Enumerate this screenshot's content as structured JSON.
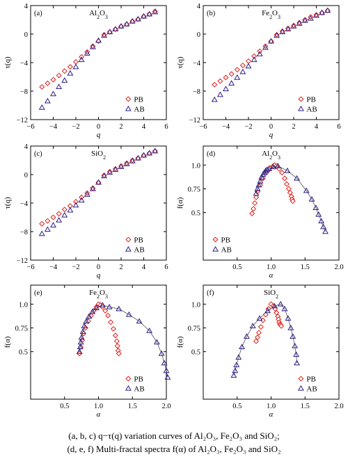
{
  "figure": {
    "caption_line1": "(a, b, c) q−τ(q) variation curves of Al₂O₃, Fe₂O₃ and SiO₂;",
    "caption_line2": "(d, e, f) Multi-fractal spectra f(α) of Al₂O₃, Fe₂O₃ and SiO₂"
  },
  "colors": {
    "PB": "#e0201b",
    "AB": "#2a1f86",
    "line": "#555555",
    "axis": "#000000"
  },
  "chart_data": [
    {
      "type": "scatter",
      "panel": "(a)",
      "title": "Al2O3",
      "xlabel": "q",
      "ylabel": "τ(q)",
      "xlim": [
        -6,
        6
      ],
      "ylim": [
        -12,
        4
      ],
      "xticks": [
        -6,
        -4,
        -2,
        0,
        2,
        4,
        6
      ],
      "yticks": [
        -12,
        -8,
        -4,
        0,
        4
      ],
      "legend_position": "bottom-right",
      "series": [
        {
          "name": "PB",
          "marker": "diamond",
          "x": [
            -5,
            -4.5,
            -4,
            -3.5,
            -3,
            -2.5,
            -2,
            -1.5,
            -1,
            -0.5,
            0,
            0.5,
            1,
            1.5,
            2,
            2.5,
            3,
            3.5,
            4,
            4.5,
            5
          ],
          "y": [
            -7.4,
            -6.9,
            -6.4,
            -5.8,
            -5.2,
            -4.6,
            -3.9,
            -3.2,
            -2.5,
            -1.7,
            -1.0,
            -0.1,
            0.3,
            0.7,
            1.1,
            1.4,
            1.8,
            2.1,
            2.5,
            2.8,
            3.2
          ],
          "connected": false
        },
        {
          "name": "AB",
          "marker": "triangle",
          "x": [
            -5,
            -4.5,
            -4,
            -3.5,
            -3,
            -2.5,
            -2,
            -1.5,
            -1,
            -0.5,
            0,
            0.5,
            1,
            1.5,
            2,
            2.5,
            3,
            3.5,
            4,
            4.5,
            5
          ],
          "y": [
            -10.3,
            -9.4,
            -8.4,
            -7.4,
            -6.5,
            -5.5,
            -4.6,
            -3.6,
            -2.7,
            -1.8,
            -0.9,
            -0.2,
            0.3,
            0.7,
            1.1,
            1.4,
            1.8,
            2.1,
            2.5,
            2.8,
            3.1
          ],
          "connected": false
        }
      ]
    },
    {
      "type": "scatter",
      "panel": "(b)",
      "title": "Fe2O3",
      "xlabel": "q",
      "ylabel": "τ(q)",
      "xlim": [
        -6,
        6
      ],
      "ylim": [
        -12,
        4
      ],
      "xticks": [
        -6,
        -4,
        -2,
        0,
        2,
        4,
        6
      ],
      "yticks": [
        -12,
        -8,
        -4,
        0,
        4
      ],
      "legend_position": "bottom-right",
      "series": [
        {
          "name": "PB",
          "marker": "diamond",
          "x": [
            -5,
            -4.5,
            -4,
            -3.5,
            -3,
            -2.5,
            -2,
            -1.5,
            -1,
            -0.5,
            0,
            0.5,
            1,
            1.5,
            2,
            2.5,
            3,
            3.5,
            4,
            4.5,
            5
          ],
          "y": [
            -7.1,
            -6.6,
            -6.1,
            -5.6,
            -5.0,
            -4.4,
            -3.8,
            -3.1,
            -2.4,
            -1.7,
            -1.0,
            -0.1,
            0.4,
            0.8,
            1.2,
            1.6,
            2.0,
            2.4,
            2.7,
            3.0,
            3.3
          ],
          "connected": false
        },
        {
          "name": "AB",
          "marker": "triangle",
          "x": [
            -5,
            -4.5,
            -4,
            -3.5,
            -3,
            -2.5,
            -2,
            -1.5,
            -1,
            -0.5,
            0,
            0.5,
            1,
            1.5,
            2,
            2.5,
            3,
            3.5,
            4,
            4.5,
            5
          ],
          "y": [
            -9.2,
            -8.5,
            -7.7,
            -6.9,
            -6.1,
            -5.3,
            -4.5,
            -3.6,
            -2.8,
            -1.9,
            -1.0,
            -0.2,
            0.3,
            0.7,
            1.1,
            1.5,
            1.9,
            2.2,
            2.6,
            3.0,
            3.3
          ],
          "connected": false
        }
      ]
    },
    {
      "type": "scatter",
      "panel": "(c)",
      "title": "SiO2",
      "xlabel": "q",
      "ylabel": "τ(q)",
      "xlim": [
        -6,
        6
      ],
      "ylim": [
        -12,
        4
      ],
      "xticks": [
        -6,
        -4,
        -2,
        0,
        2,
        4,
        6
      ],
      "yticks": [
        -12,
        -8,
        -4,
        0,
        4
      ],
      "legend_position": "bottom-right",
      "series": [
        {
          "name": "PB",
          "marker": "diamond",
          "x": [
            -5,
            -4.5,
            -4,
            -3.5,
            -3,
            -2.5,
            -2,
            -1.5,
            -1,
            -0.5,
            0,
            0.5,
            1,
            1.5,
            2,
            2.5,
            3,
            3.5,
            4,
            4.5,
            5
          ],
          "y": [
            -6.9,
            -6.5,
            -6.0,
            -5.5,
            -4.9,
            -4.4,
            -3.8,
            -3.2,
            -2.6,
            -1.9,
            -1.1,
            -0.1,
            0.4,
            0.8,
            1.2,
            1.6,
            2.0,
            2.3,
            2.7,
            3.0,
            3.3
          ],
          "connected": false
        },
        {
          "name": "AB",
          "marker": "triangle",
          "x": [
            -5,
            -4.5,
            -4,
            -3.5,
            -3,
            -2.5,
            -2,
            -1.5,
            -1,
            -0.5,
            0,
            0.5,
            1,
            1.5,
            2,
            2.5,
            3,
            3.5,
            4,
            4.5,
            5
          ],
          "y": [
            -8.3,
            -7.7,
            -7.1,
            -6.4,
            -5.7,
            -5.0,
            -4.3,
            -3.6,
            -2.8,
            -2.0,
            -1.1,
            -0.2,
            0.3,
            0.7,
            1.1,
            1.5,
            1.9,
            2.3,
            2.7,
            3.0,
            3.3
          ],
          "connected": false
        }
      ]
    },
    {
      "type": "scatter",
      "panel": "(d)",
      "title": "Al2O3",
      "xlabel": "α",
      "ylabel": "f(α)",
      "xlim": [
        0,
        2
      ],
      "ylim": [
        0,
        1.2
      ],
      "xticks": [
        0.5,
        1.0,
        1.5,
        2.0
      ],
      "yticks": [
        0.5,
        0.75,
        1.0
      ],
      "legend_position": "bottom-left",
      "series": [
        {
          "name": "PB",
          "marker": "diamond",
          "x": [
            0.72,
            0.74,
            0.76,
            0.78,
            0.8,
            0.84,
            0.88,
            0.93,
            0.98,
            1.03,
            1.05,
            1.08,
            1.12,
            1.16,
            1.2,
            1.23,
            1.26,
            1.28,
            1.3,
            1.31,
            1.32
          ],
          "y": [
            0.49,
            0.54,
            0.6,
            0.66,
            0.72,
            0.79,
            0.86,
            0.92,
            0.97,
            0.99,
            1.0,
            0.99,
            0.96,
            0.92,
            0.86,
            0.8,
            0.75,
            0.71,
            0.67,
            0.64,
            0.62
          ],
          "connected": false
        },
        {
          "name": "AB",
          "marker": "triangle",
          "x": [
            0.78,
            0.8,
            0.82,
            0.84,
            0.86,
            0.88,
            0.9,
            0.92,
            0.94,
            0.97,
            1.03,
            1.1,
            1.24,
            1.38,
            1.52,
            1.6,
            1.66,
            1.7,
            1.74,
            1.77,
            1.8
          ],
          "y": [
            0.7,
            0.75,
            0.79,
            0.83,
            0.87,
            0.9,
            0.92,
            0.94,
            0.95,
            0.96,
            0.98,
            0.99,
            0.94,
            0.86,
            0.73,
            0.64,
            0.55,
            0.48,
            0.41,
            0.35,
            0.3
          ],
          "connected": true
        }
      ]
    },
    {
      "type": "scatter",
      "panel": "(e)",
      "title": "Fe2O3",
      "xlabel": "α",
      "ylabel": "f(α)",
      "xlim": [
        0,
        2
      ],
      "ylim": [
        0,
        1.2
      ],
      "xticks": [
        0.5,
        1.0,
        1.5,
        2.0
      ],
      "yticks": [
        0.5,
        0.75,
        1.0
      ],
      "legend_position": "bottom-right",
      "series": [
        {
          "name": "PB",
          "marker": "diamond",
          "x": [
            0.72,
            0.74,
            0.76,
            0.78,
            0.81,
            0.85,
            0.89,
            0.93,
            0.97,
            1.0,
            1.03,
            1.06,
            1.1,
            1.14,
            1.18,
            1.22,
            1.25,
            1.27,
            1.28,
            1.29,
            1.3
          ],
          "y": [
            0.48,
            0.55,
            0.62,
            0.69,
            0.75,
            0.82,
            0.88,
            0.93,
            0.97,
            1.0,
            0.99,
            0.97,
            0.93,
            0.88,
            0.81,
            0.74,
            0.67,
            0.61,
            0.56,
            0.51,
            0.48
          ],
          "connected": false
        },
        {
          "name": "AB",
          "marker": "triangle",
          "x": [
            0.72,
            0.73,
            0.74,
            0.75,
            0.77,
            0.79,
            0.82,
            0.86,
            0.91,
            0.97,
            1.06,
            1.16,
            1.3,
            1.45,
            1.6,
            1.75,
            1.86,
            1.93,
            1.97,
            2.0,
            2.02
          ],
          "y": [
            0.5,
            0.55,
            0.6,
            0.65,
            0.71,
            0.77,
            0.82,
            0.87,
            0.92,
            0.96,
            0.99,
            0.97,
            0.95,
            0.89,
            0.82,
            0.72,
            0.6,
            0.48,
            0.38,
            0.3,
            0.23
          ],
          "connected": true
        }
      ]
    },
    {
      "type": "scatter",
      "panel": "(f)",
      "title": "SiO2",
      "xlabel": "α",
      "ylabel": "f(α)",
      "xlim": [
        0,
        2
      ],
      "ylim": [
        0,
        1.2
      ],
      "xticks": [
        0.5,
        1.0,
        1.5,
        2.0
      ],
      "yticks": [
        0.5,
        0.75,
        1.0
      ],
      "legend_position": "bottom-right",
      "series": [
        {
          "name": "PB",
          "marker": "diamond",
          "x": [
            0.78,
            0.8,
            0.82,
            0.85,
            0.88,
            0.92,
            0.96,
            1.0,
            1.03,
            1.06,
            1.08,
            1.1,
            1.11,
            1.12,
            1.13,
            1.14,
            1.15
          ],
          "y": [
            0.61,
            0.65,
            0.7,
            0.76,
            0.83,
            0.89,
            0.95,
            1.0,
            0.98,
            0.95,
            0.91,
            0.87,
            0.84,
            0.81,
            0.79,
            0.78,
            0.77
          ],
          "connected": false
        },
        {
          "name": "AB",
          "marker": "triangle",
          "x": [
            0.45,
            0.47,
            0.49,
            0.52,
            0.57,
            0.64,
            0.73,
            0.83,
            0.95,
            1.05,
            1.14,
            1.2,
            1.25,
            1.29,
            1.32,
            1.35,
            1.37,
            1.38
          ],
          "y": [
            0.25,
            0.3,
            0.36,
            0.44,
            0.55,
            0.66,
            0.77,
            0.85,
            0.93,
            0.98,
            1.0,
            0.95,
            0.85,
            0.75,
            0.66,
            0.56,
            0.47,
            0.38
          ],
          "connected": true
        }
      ]
    }
  ]
}
